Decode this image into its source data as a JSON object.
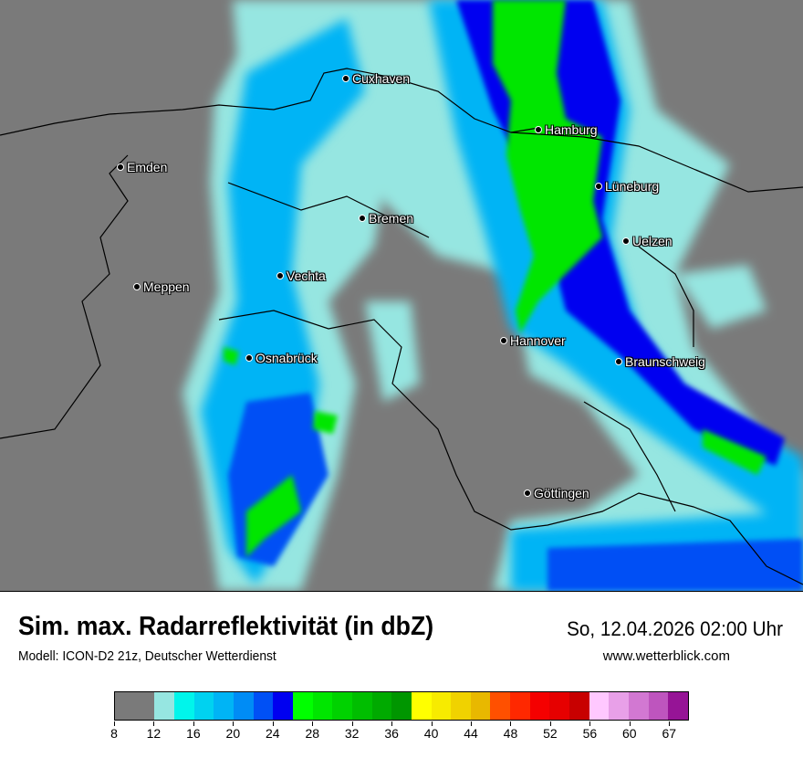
{
  "title": "Sim. max. Radarreflektivität (in dbZ)",
  "datetime": "So, 12.04.2026 02:00 Uhr",
  "model": "Modell: ICON-D2 21z, Deutscher Wetterdienst",
  "website": "www.wetterblick.com",
  "map": {
    "background_color": "#7a7a7a",
    "cities": [
      {
        "name": "Cuxhaven"
      },
      {
        "name": "Hamburg"
      },
      {
        "name": "Emden"
      },
      {
        "name": "Lüneburg"
      },
      {
        "name": "Bremen"
      },
      {
        "name": "Uelzen"
      },
      {
        "name": "Vechta"
      },
      {
        "name": "Meppen"
      },
      {
        "name": "Hannover"
      },
      {
        "name": "Osnabrück"
      },
      {
        "name": "Braunschweig"
      },
      {
        "name": "Göttingen"
      }
    ]
  },
  "legend": {
    "unit": "dbZ",
    "bounds": [
      8,
      12,
      14,
      16,
      18,
      20,
      22,
      24,
      26,
      28,
      30,
      32,
      34,
      36,
      38,
      40,
      42,
      44,
      46,
      48,
      50,
      52,
      54,
      56,
      58,
      60,
      62,
      64,
      67
    ],
    "colors": [
      "#7a7a7a",
      "#96e6e1",
      "#00f5eb",
      "#00d2f0",
      "#00b4f5",
      "#008cf5",
      "#0050f5",
      "#0000f0",
      "#00ff00",
      "#00e600",
      "#00d200",
      "#00be00",
      "#00aa00",
      "#009600",
      "#ffff00",
      "#f7eb00",
      "#f0d200",
      "#e8b800",
      "#ff5000",
      "#ff2800",
      "#f50000",
      "#e60000",
      "#c80000",
      "#ffc8ff",
      "#e8a0e8",
      "#d278d2",
      "#be55be",
      "#961496"
    ],
    "tick_labels": [
      "8",
      "12",
      "16",
      "20",
      "24",
      "28",
      "32",
      "36",
      "40",
      "44",
      "48",
      "52",
      "56",
      "60",
      "67"
    ]
  }
}
